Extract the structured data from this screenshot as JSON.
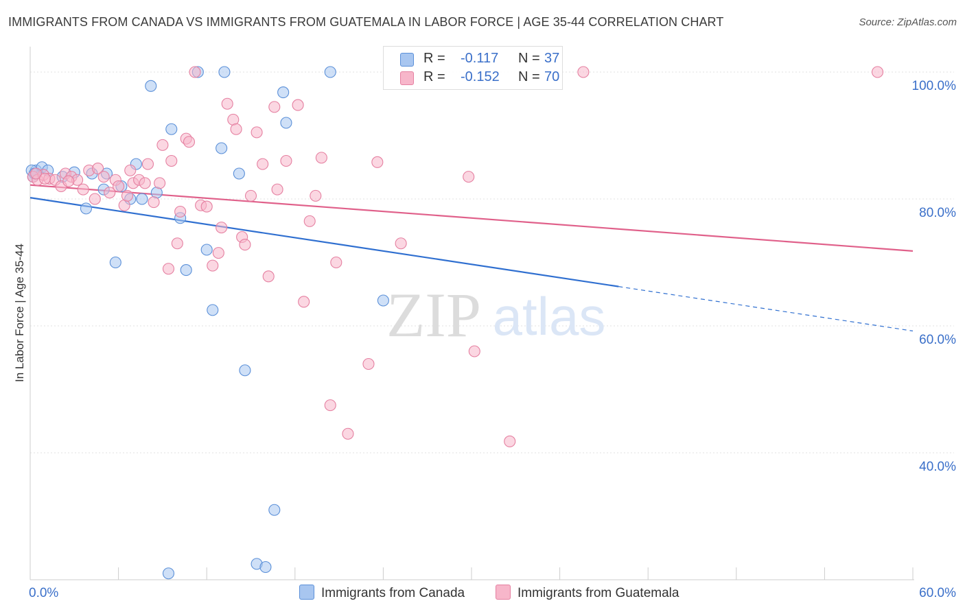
{
  "header": {
    "title": "IMMIGRANTS FROM CANADA VS IMMIGRANTS FROM GUATEMALA IN LABOR FORCE | AGE 35-44 CORRELATION CHART",
    "source": "Source: ZipAtlas.com"
  },
  "watermark": {
    "zip": "ZIP",
    "atlas": "atlas"
  },
  "stats": [
    {
      "r_label": "R =",
      "r_value": "-0.117",
      "n_label": "N =",
      "n_value": "37",
      "color": "#a8c6f0"
    },
    {
      "r_label": "R =",
      "r_value": "-0.152",
      "n_label": "N =",
      "n_value": "70",
      "color": "#f7b6ca"
    }
  ],
  "chart_data": {
    "type": "scatter",
    "title": "IMMIGRANTS FROM CANADA VS IMMIGRANTS FROM GUATEMALA IN LABOR FORCE | AGE 35-44 CORRELATION CHART",
    "xlabel": "",
    "ylabel": "In Labor Force | Age 35-44",
    "xlim": [
      0,
      60
    ],
    "ylim": [
      20,
      104
    ],
    "x_tick_labels": [
      {
        "value": 0,
        "label": "0.0%"
      },
      {
        "value": 60,
        "label": "60.0%"
      }
    ],
    "x_minor_ticks": [
      0,
      6,
      12,
      18,
      24,
      30,
      36,
      42,
      48,
      54,
      60
    ],
    "y_ticks": [
      {
        "value": 40,
        "label": "40.0%"
      },
      {
        "value": 60,
        "label": "60.0%"
      },
      {
        "value": 80,
        "label": "80.0%"
      },
      {
        "value": 100,
        "label": "100.0%"
      }
    ],
    "grid": true,
    "legend_position": "bottom-center",
    "series": [
      {
        "name": "Immigrants from Canada",
        "color": "#a8c6f0",
        "stroke": "#5a8fd8",
        "trend": {
          "x0": 0,
          "y0": 80.2,
          "x1": 40,
          "y1": 66.2,
          "dash_to_x": 60,
          "dash_to_y": 59.2,
          "color": "#2f6fd0"
        },
        "points": [
          [
            0.2,
            83.5
          ],
          [
            0.4,
            84.5
          ],
          [
            0.8,
            85.0
          ],
          [
            1.2,
            84.5
          ],
          [
            2.2,
            83.5
          ],
          [
            3.0,
            84.2
          ],
          [
            3.8,
            78.5
          ],
          [
            4.2,
            84.0
          ],
          [
            5.0,
            81.5
          ],
          [
            5.2,
            84.0
          ],
          [
            5.8,
            70.0
          ],
          [
            6.2,
            82.0
          ],
          [
            6.8,
            80.0
          ],
          [
            7.2,
            85.5
          ],
          [
            7.6,
            80.0
          ],
          [
            8.2,
            97.8
          ],
          [
            8.6,
            81.0
          ],
          [
            9.4,
            21.0
          ],
          [
            9.6,
            91.0
          ],
          [
            10.2,
            77.0
          ],
          [
            10.6,
            68.8
          ],
          [
            11.4,
            100.0
          ],
          [
            12.0,
            72.0
          ],
          [
            12.4,
            62.5
          ],
          [
            13.0,
            88.0
          ],
          [
            13.2,
            100.0
          ],
          [
            14.2,
            84.0
          ],
          [
            14.6,
            53.0
          ],
          [
            15.4,
            22.5
          ],
          [
            16.0,
            22.0
          ],
          [
            16.6,
            31.0
          ],
          [
            17.2,
            96.8
          ],
          [
            17.4,
            92.0
          ],
          [
            20.4,
            100.0
          ],
          [
            24.0,
            64.0
          ],
          [
            0.1,
            84.5
          ],
          [
            0.3,
            84.0
          ]
        ]
      },
      {
        "name": "Immigrants from Guatemala",
        "color": "#f7b6ca",
        "stroke": "#e57fa0",
        "trend": {
          "x0": 0,
          "y0": 82.2,
          "x1": 60,
          "y1": 71.8,
          "color": "#e0608a"
        },
        "points": [
          [
            0.2,
            83.5
          ],
          [
            0.5,
            83.0
          ],
          [
            0.9,
            83.8
          ],
          [
            1.3,
            83.2
          ],
          [
            1.7,
            83.0
          ],
          [
            2.1,
            82.0
          ],
          [
            2.4,
            84.0
          ],
          [
            2.8,
            83.5
          ],
          [
            3.2,
            83.0
          ],
          [
            3.6,
            81.5
          ],
          [
            4.0,
            84.5
          ],
          [
            4.4,
            80.0
          ],
          [
            4.6,
            84.8
          ],
          [
            5.0,
            83.5
          ],
          [
            5.4,
            81.0
          ],
          [
            5.8,
            83.0
          ],
          [
            6.0,
            82.0
          ],
          [
            6.4,
            79.0
          ],
          [
            6.6,
            80.5
          ],
          [
            6.8,
            84.5
          ],
          [
            7.0,
            82.5
          ],
          [
            7.4,
            83.0
          ],
          [
            7.8,
            82.5
          ],
          [
            8.0,
            85.5
          ],
          [
            8.4,
            79.5
          ],
          [
            8.8,
            82.5
          ],
          [
            9.0,
            88.5
          ],
          [
            9.4,
            69.0
          ],
          [
            9.6,
            86.0
          ],
          [
            10.0,
            73.0
          ],
          [
            10.2,
            78.0
          ],
          [
            10.6,
            89.5
          ],
          [
            10.8,
            89.0
          ],
          [
            11.2,
            100.0
          ],
          [
            11.6,
            79.0
          ],
          [
            12.0,
            78.8
          ],
          [
            12.4,
            69.5
          ],
          [
            12.8,
            71.5
          ],
          [
            13.0,
            75.5
          ],
          [
            13.4,
            95.0
          ],
          [
            13.8,
            92.5
          ],
          [
            14.0,
            91.0
          ],
          [
            14.4,
            74.0
          ],
          [
            14.6,
            72.8
          ],
          [
            15.0,
            80.5
          ],
          [
            15.4,
            90.5
          ],
          [
            15.8,
            85.5
          ],
          [
            16.2,
            67.8
          ],
          [
            16.6,
            94.5
          ],
          [
            16.8,
            81.5
          ],
          [
            17.4,
            86.0
          ],
          [
            18.2,
            94.8
          ],
          [
            18.6,
            63.8
          ],
          [
            19.0,
            76.5
          ],
          [
            19.4,
            80.5
          ],
          [
            19.8,
            86.5
          ],
          [
            20.4,
            47.5
          ],
          [
            20.8,
            70.0
          ],
          [
            21.6,
            43.0
          ],
          [
            23.0,
            54.0
          ],
          [
            23.6,
            85.8
          ],
          [
            25.2,
            73.0
          ],
          [
            29.8,
            83.5
          ],
          [
            30.2,
            56.0
          ],
          [
            32.6,
            41.8
          ],
          [
            37.6,
            100.0
          ],
          [
            57.6,
            100.0
          ],
          [
            0.4,
            84.0
          ],
          [
            1.0,
            83.2
          ],
          [
            2.6,
            82.8
          ]
        ]
      }
    ]
  }
}
